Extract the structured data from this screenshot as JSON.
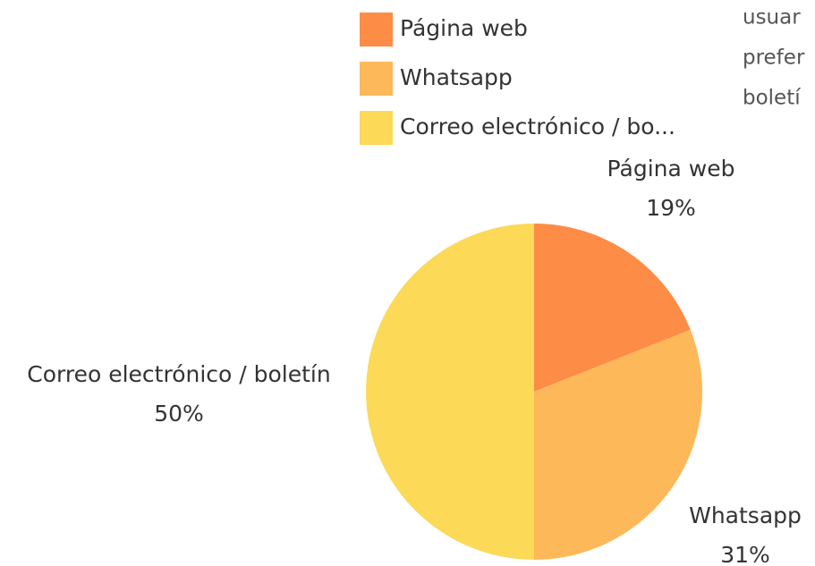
{
  "chart_data": {
    "type": "pie",
    "categories": [
      "Página web",
      "Whatsapp",
      "Correo electrónico / boletín"
    ],
    "legend": [
      "Página web",
      "Whatsapp",
      "Correo electrónico / bo..."
    ],
    "values": [
      19,
      31,
      50
    ],
    "value_labels": [
      "19%",
      "31%",
      "50%"
    ],
    "colors": [
      "#fd8c47",
      "#fdb859",
      "#fcd957"
    ],
    "side_text": [
      "usuar",
      "prefer",
      "boletí"
    ]
  }
}
